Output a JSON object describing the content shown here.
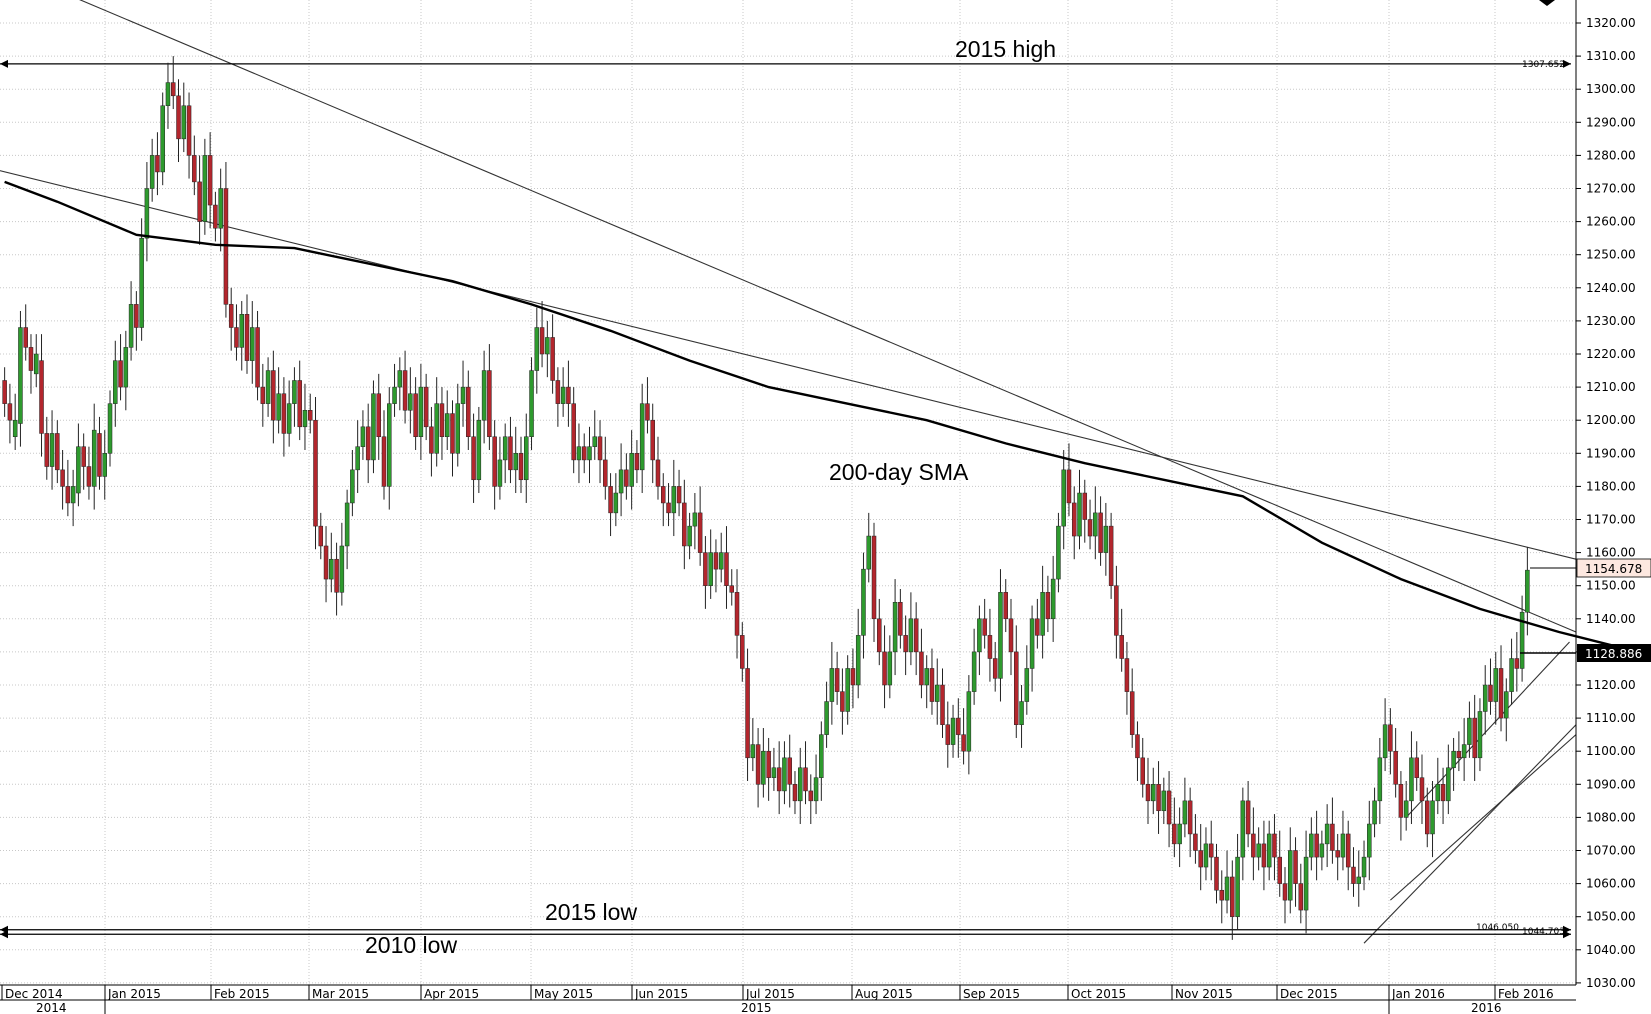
{
  "chart_data": {
    "type": "candlestick",
    "title": "",
    "xlabel": "",
    "ylabel": "",
    "ylim": [
      1025,
      1325
    ],
    "grid": true,
    "y_ticks": [
      "1320.00",
      "1310.00",
      "1300.00",
      "1290.00",
      "1280.00",
      "1270.00",
      "1260.00",
      "1250.00",
      "1240.00",
      "1230.00",
      "1220.00",
      "1210.00",
      "1200.00",
      "1190.00",
      "1180.00",
      "1170.00",
      "1160.00",
      "1150.00",
      "1140.00",
      "1130.00",
      "1120.00",
      "1110.00",
      "1100.00",
      "1090.00",
      "1080.00",
      "1070.00",
      "1060.00",
      "1050.00",
      "1040.00",
      "1030.00"
    ],
    "month_labels": [
      "Dec 2014",
      "Jan 2015",
      "Feb 2015",
      "Mar 2015",
      "Apr 2015",
      "May 2015",
      "Jun 2015",
      "Jul 2015",
      "Aug 2015",
      "Sep 2015",
      "Oct 2015",
      "Nov 2015",
      "Dec 2015",
      "Jan 2016",
      "Feb 2016"
    ],
    "year_labels": [
      "2014",
      "2015",
      "2016"
    ],
    "price_labels": {
      "current": "1154.678",
      "sma": "1128.886",
      "high_2015": "1307.652",
      "low_2015": "1046.050",
      "low_2010": "1044.703"
    },
    "annotations": {
      "high_2015": "2015 high",
      "low_2015": "2015 low",
      "low_2010": "2010 low",
      "sma": "200-day SMA"
    },
    "horizontal_levels": {
      "high_2015": 1307.652,
      "low_2015": 1046.05,
      "low_2010": 1044.703
    },
    "sma_200": [
      [
        0,
        1272
      ],
      [
        10,
        1266
      ],
      [
        25,
        1256
      ],
      [
        40,
        1253
      ],
      [
        55,
        1252
      ],
      [
        70,
        1247
      ],
      [
        85,
        1242
      ],
      [
        100,
        1235
      ],
      [
        115,
        1227
      ],
      [
        130,
        1218
      ],
      [
        145,
        1210
      ],
      [
        160,
        1205
      ],
      [
        175,
        1200
      ],
      [
        190,
        1193
      ],
      [
        205,
        1187
      ],
      [
        220,
        1182
      ],
      [
        235,
        1177
      ],
      [
        250,
        1163
      ],
      [
        265,
        1152
      ],
      [
        280,
        1143
      ],
      [
        295,
        1136
      ],
      [
        310,
        1130
      ],
      [
        318,
        1128.9
      ]
    ],
    "candles": [
      [
        0,
        1212,
        1205
      ],
      [
        1,
        1205,
        1200
      ],
      [
        2,
        1195,
        1200
      ],
      [
        3,
        1199,
        1228
      ],
      [
        4,
        1228,
        1222
      ],
      [
        5,
        1222,
        1215
      ],
      [
        6,
        1214,
        1220
      ],
      [
        7,
        1218,
        1196
      ],
      [
        8,
        1196,
        1186
      ],
      [
        9,
        1186,
        1196
      ],
      [
        10,
        1196,
        1185
      ],
      [
        11,
        1185,
        1180
      ],
      [
        12,
        1180,
        1175
      ],
      [
        13,
        1175,
        1180
      ],
      [
        14,
        1178,
        1192
      ],
      [
        15,
        1192,
        1186
      ],
      [
        16,
        1186,
        1180
      ],
      [
        17,
        1180,
        1197
      ],
      [
        18,
        1196,
        1183
      ],
      [
        19,
        1183,
        1190
      ],
      [
        20,
        1190,
        1205
      ],
      [
        21,
        1205,
        1218
      ],
      [
        22,
        1218,
        1210
      ],
      [
        23,
        1210,
        1222
      ],
      [
        24,
        1222,
        1235
      ],
      [
        25,
        1235,
        1228
      ],
      [
        26,
        1228,
        1255
      ],
      [
        27,
        1255,
        1270
      ],
      [
        28,
        1270,
        1280
      ],
      [
        29,
        1280,
        1275
      ],
      [
        30,
        1275,
        1295
      ],
      [
        31,
        1295,
        1302
      ],
      [
        32,
        1302,
        1298
      ],
      [
        33,
        1298,
        1285
      ],
      [
        34,
        1285,
        1295
      ],
      [
        35,
        1295,
        1280
      ],
      [
        36,
        1280,
        1272
      ],
      [
        37,
        1272,
        1260
      ],
      [
        38,
        1260,
        1280
      ],
      [
        39,
        1280,
        1265
      ],
      [
        40,
        1265,
        1258
      ],
      [
        41,
        1258,
        1270
      ],
      [
        42,
        1270,
        1235
      ],
      [
        43,
        1235,
        1228
      ],
      [
        44,
        1228,
        1222
      ],
      [
        45,
        1222,
        1232
      ],
      [
        46,
        1232,
        1218
      ],
      [
        47,
        1218,
        1228
      ],
      [
        48,
        1228,
        1210
      ],
      [
        49,
        1210,
        1205
      ],
      [
        50,
        1205,
        1215
      ],
      [
        51,
        1215,
        1200
      ],
      [
        52,
        1200,
        1208
      ],
      [
        53,
        1208,
        1196
      ],
      [
        54,
        1196,
        1205
      ],
      [
        55,
        1205,
        1212
      ],
      [
        56,
        1212,
        1198
      ],
      [
        57,
        1198,
        1203
      ],
      [
        58,
        1203,
        1200
      ],
      [
        59,
        1200,
        1168
      ],
      [
        60,
        1168,
        1162
      ],
      [
        61,
        1162,
        1152
      ],
      [
        62,
        1152,
        1158
      ],
      [
        63,
        1158,
        1148
      ],
      [
        64,
        1148,
        1162
      ],
      [
        65,
        1162,
        1175
      ],
      [
        66,
        1175,
        1185
      ],
      [
        67,
        1185,
        1192
      ],
      [
        68,
        1192,
        1198
      ],
      [
        69,
        1198,
        1188
      ],
      [
        70,
        1188,
        1208
      ],
      [
        71,
        1208,
        1195
      ],
      [
        72,
        1195,
        1180
      ],
      [
        73,
        1180,
        1205
      ],
      [
        74,
        1205,
        1210
      ],
      [
        75,
        1210,
        1215
      ],
      [
        76,
        1215,
        1203
      ],
      [
        77,
        1203,
        1208
      ],
      [
        78,
        1208,
        1195
      ],
      [
        79,
        1195,
        1210
      ],
      [
        80,
        1210,
        1198
      ],
      [
        81,
        1198,
        1190
      ],
      [
        82,
        1190,
        1205
      ],
      [
        83,
        1205,
        1195
      ],
      [
        84,
        1195,
        1202
      ],
      [
        85,
        1202,
        1190
      ],
      [
        86,
        1190,
        1205
      ],
      [
        87,
        1205,
        1210
      ],
      [
        88,
        1210,
        1195
      ],
      [
        89,
        1195,
        1182
      ],
      [
        90,
        1182,
        1200
      ],
      [
        91,
        1200,
        1215
      ],
      [
        92,
        1215,
        1195
      ],
      [
        93,
        1195,
        1180
      ],
      [
        94,
        1180,
        1188
      ],
      [
        95,
        1188,
        1195
      ],
      [
        96,
        1195,
        1185
      ],
      [
        97,
        1185,
        1190
      ],
      [
        98,
        1190,
        1182
      ],
      [
        99,
        1182,
        1195
      ],
      [
        100,
        1195,
        1215
      ],
      [
        101,
        1215,
        1228
      ],
      [
        102,
        1228,
        1220
      ],
      [
        103,
        1220,
        1225
      ],
      [
        104,
        1225,
        1212
      ],
      [
        105,
        1212,
        1205
      ],
      [
        106,
        1205,
        1210
      ],
      [
        107,
        1210,
        1205
      ],
      [
        108,
        1205,
        1188
      ],
      [
        109,
        1188,
        1192
      ],
      [
        110,
        1192,
        1188
      ],
      [
        111,
        1188,
        1192
      ],
      [
        112,
        1192,
        1195
      ],
      [
        113,
        1195,
        1188
      ],
      [
        114,
        1188,
        1180
      ],
      [
        115,
        1180,
        1172
      ],
      [
        116,
        1172,
        1178
      ],
      [
        117,
        1178,
        1185
      ],
      [
        118,
        1185,
        1180
      ],
      [
        119,
        1180,
        1190
      ],
      [
        120,
        1190,
        1185
      ],
      [
        121,
        1185,
        1205
      ],
      [
        122,
        1205,
        1200
      ],
      [
        123,
        1200,
        1188
      ],
      [
        124,
        1188,
        1180
      ],
      [
        125,
        1180,
        1175
      ],
      [
        126,
        1175,
        1172
      ],
      [
        127,
        1172,
        1180
      ],
      [
        128,
        1180,
        1175
      ],
      [
        129,
        1175,
        1162
      ],
      [
        130,
        1162,
        1168
      ],
      [
        131,
        1168,
        1172
      ],
      [
        132,
        1172,
        1160
      ],
      [
        133,
        1160,
        1150
      ],
      [
        134,
        1150,
        1160
      ],
      [
        135,
        1160,
        1155
      ],
      [
        136,
        1155,
        1160
      ],
      [
        137,
        1160,
        1150
      ],
      [
        138,
        1150,
        1148
      ],
      [
        139,
        1148,
        1135
      ],
      [
        140,
        1135,
        1125
      ],
      [
        141,
        1125,
        1098
      ],
      [
        142,
        1098,
        1102
      ],
      [
        143,
        1102,
        1090
      ],
      [
        144,
        1090,
        1100
      ],
      [
        145,
        1100,
        1092
      ],
      [
        146,
        1092,
        1095
      ],
      [
        147,
        1095,
        1088
      ],
      [
        148,
        1088,
        1098
      ],
      [
        149,
        1098,
        1090
      ],
      [
        150,
        1090,
        1085
      ],
      [
        151,
        1085,
        1095
      ],
      [
        152,
        1095,
        1088
      ],
      [
        153,
        1088,
        1085
      ],
      [
        154,
        1085,
        1092
      ],
      [
        155,
        1092,
        1105
      ],
      [
        156,
        1105,
        1115
      ],
      [
        157,
        1115,
        1125
      ],
      [
        158,
        1125,
        1118
      ],
      [
        159,
        1118,
        1112
      ],
      [
        160,
        1112,
        1125
      ],
      [
        161,
        1125,
        1120
      ],
      [
        162,
        1120,
        1135
      ],
      [
        163,
        1135,
        1155
      ],
      [
        164,
        1155,
        1165
      ],
      [
        165,
        1165,
        1140
      ],
      [
        166,
        1140,
        1130
      ],
      [
        167,
        1130,
        1120
      ],
      [
        168,
        1120,
        1130
      ],
      [
        169,
        1130,
        1145
      ],
      [
        170,
        1145,
        1135
      ],
      [
        171,
        1135,
        1130
      ],
      [
        172,
        1130,
        1140
      ],
      [
        173,
        1140,
        1130
      ],
      [
        174,
        1130,
        1120
      ],
      [
        175,
        1120,
        1125
      ],
      [
        176,
        1125,
        1115
      ],
      [
        177,
        1115,
        1120
      ],
      [
        178,
        1120,
        1108
      ],
      [
        179,
        1108,
        1102
      ],
      [
        180,
        1102,
        1110
      ],
      [
        181,
        1110,
        1105
      ],
      [
        182,
        1105,
        1100
      ],
      [
        183,
        1100,
        1118
      ],
      [
        184,
        1118,
        1130
      ],
      [
        185,
        1130,
        1140
      ],
      [
        186,
        1140,
        1135
      ],
      [
        187,
        1135,
        1128
      ],
      [
        188,
        1128,
        1122
      ],
      [
        189,
        1122,
        1148
      ],
      [
        190,
        1148,
        1140
      ],
      [
        191,
        1140,
        1130
      ],
      [
        192,
        1130,
        1108
      ],
      [
        193,
        1108,
        1115
      ],
      [
        194,
        1115,
        1125
      ],
      [
        195,
        1125,
        1140
      ],
      [
        196,
        1140,
        1135
      ],
      [
        197,
        1135,
        1148
      ],
      [
        198,
        1148,
        1140
      ],
      [
        199,
        1140,
        1152
      ],
      [
        200,
        1152,
        1168
      ],
      [
        201,
        1168,
        1185
      ],
      [
        202,
        1185,
        1175
      ],
      [
        203,
        1175,
        1165
      ],
      [
        204,
        1165,
        1178
      ],
      [
        205,
        1178,
        1170
      ],
      [
        206,
        1170,
        1165
      ],
      [
        207,
        1165,
        1172
      ],
      [
        208,
        1172,
        1160
      ],
      [
        209,
        1160,
        1168
      ],
      [
        210,
        1168,
        1150
      ],
      [
        211,
        1150,
        1135
      ],
      [
        212,
        1135,
        1128
      ],
      [
        213,
        1128,
        1118
      ],
      [
        214,
        1118,
        1105
      ],
      [
        215,
        1105,
        1098
      ],
      [
        216,
        1098,
        1090
      ],
      [
        217,
        1090,
        1085
      ],
      [
        218,
        1085,
        1090
      ],
      [
        219,
        1090,
        1082
      ],
      [
        220,
        1082,
        1088
      ],
      [
        221,
        1088,
        1078
      ],
      [
        222,
        1078,
        1072
      ],
      [
        223,
        1072,
        1078
      ],
      [
        224,
        1078,
        1085
      ],
      [
        225,
        1085,
        1075
      ],
      [
        226,
        1075,
        1070
      ],
      [
        227,
        1070,
        1065
      ],
      [
        228,
        1065,
        1072
      ],
      [
        229,
        1072,
        1068
      ],
      [
        230,
        1068,
        1058
      ],
      [
        231,
        1058,
        1055
      ],
      [
        232,
        1055,
        1062
      ],
      [
        233,
        1062,
        1050
      ],
      [
        234,
        1050,
        1068
      ],
      [
        235,
        1068,
        1085
      ],
      [
        236,
        1085,
        1075
      ],
      [
        237,
        1075,
        1068
      ],
      [
        238,
        1068,
        1072
      ],
      [
        239,
        1072,
        1065
      ],
      [
        240,
        1065,
        1075
      ],
      [
        241,
        1075,
        1068
      ],
      [
        242,
        1068,
        1060
      ],
      [
        243,
        1060,
        1055
      ],
      [
        244,
        1055,
        1070
      ],
      [
        245,
        1070,
        1060
      ],
      [
        246,
        1060,
        1052
      ],
      [
        247,
        1052,
        1068
      ],
      [
        248,
        1068,
        1075
      ],
      [
        249,
        1075,
        1068
      ],
      [
        250,
        1068,
        1072
      ],
      [
        251,
        1072,
        1078
      ],
      [
        252,
        1078,
        1070
      ],
      [
        253,
        1070,
        1068
      ],
      [
        254,
        1068,
        1075
      ],
      [
        255,
        1075,
        1065
      ],
      [
        256,
        1065,
        1060
      ],
      [
        257,
        1060,
        1062
      ],
      [
        258,
        1062,
        1068
      ],
      [
        259,
        1068,
        1078
      ],
      [
        260,
        1078,
        1085
      ],
      [
        261,
        1085,
        1098
      ],
      [
        262,
        1098,
        1108
      ],
      [
        263,
        1108,
        1100
      ],
      [
        264,
        1100,
        1090
      ],
      [
        265,
        1090,
        1080
      ],
      [
        266,
        1080,
        1085
      ],
      [
        267,
        1085,
        1098
      ],
      [
        268,
        1098,
        1092
      ],
      [
        269,
        1092,
        1085
      ],
      [
        270,
        1085,
        1075
      ],
      [
        271,
        1075,
        1085
      ],
      [
        272,
        1085,
        1090
      ],
      [
        273,
        1090,
        1085
      ],
      [
        274,
        1085,
        1095
      ],
      [
        275,
        1095,
        1100
      ],
      [
        276,
        1100,
        1098
      ],
      [
        277,
        1098,
        1102
      ],
      [
        278,
        1102,
        1110
      ],
      [
        279,
        1110,
        1098
      ],
      [
        280,
        1098,
        1112
      ],
      [
        281,
        1112,
        1120
      ],
      [
        282,
        1120,
        1115
      ],
      [
        283,
        1115,
        1125
      ],
      [
        284,
        1125,
        1110
      ],
      [
        285,
        1110,
        1118
      ],
      [
        286,
        1118,
        1128
      ],
      [
        287,
        1128,
        1125
      ],
      [
        288,
        1125,
        1142
      ],
      [
        289,
        1142,
        1154.7
      ]
    ]
  }
}
